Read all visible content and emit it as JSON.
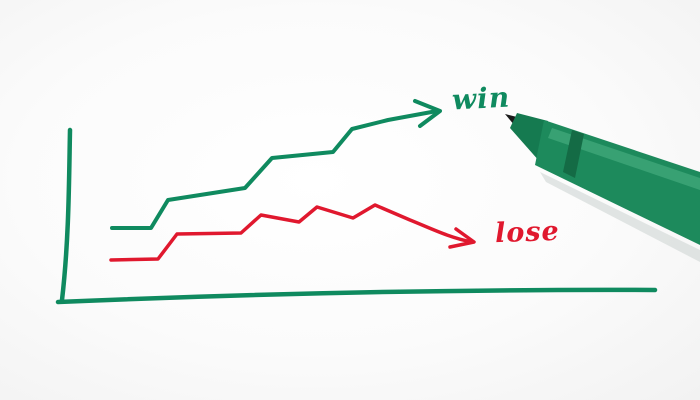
{
  "labels": {
    "win": "win",
    "lose": "lose"
  },
  "colors": {
    "green_marker": "#0f8a5f",
    "red_marker": "#e0182e",
    "pen_body": "#1d8a5c",
    "pen_tip": "#1a1a1a"
  },
  "objects": {
    "pen": "green-felt-tip-marker",
    "drawing": "hand-drawn-line-chart"
  }
}
